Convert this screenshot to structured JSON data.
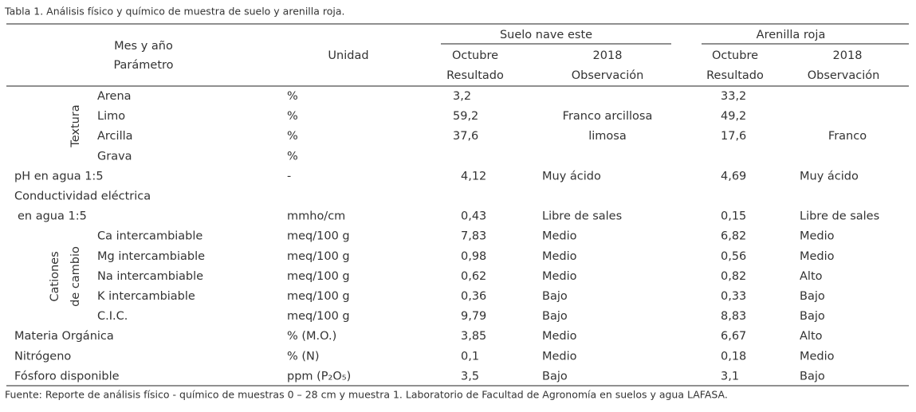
{
  "caption": "Tabla 1. Análisis físico y químico de muestra de suelo y arenilla roja.",
  "header": {
    "mes_ano": "Mes y año",
    "parametro": "Parámetro",
    "unidad": "Unidad",
    "suelo": {
      "title": "Suelo nave este",
      "month": "Octubre",
      "year": "2018",
      "resultado": "Resultado",
      "observacion": "Observación"
    },
    "arenilla": {
      "title": "Arenilla roja",
      "month": "Octubre",
      "year": "2018",
      "resultado": "Resultado",
      "observacion": "Observación"
    }
  },
  "groups": {
    "textura": "Textura",
    "cationes": [
      "Cationes",
      "de cambio"
    ]
  },
  "rows": [
    {
      "group": "textura",
      "parameter": "Arena",
      "unit": "%",
      "suelo_resultado": "3,2",
      "arenilla_resultado": "33,2"
    },
    {
      "group": "textura",
      "parameter": "Limo",
      "unit": "%",
      "suelo_resultado": "59,2",
      "suelo_observacion": "Franco arcillosa",
      "arenilla_resultado": "49,2"
    },
    {
      "group": "textura",
      "parameter": "Arcilla",
      "unit": "%",
      "suelo_resultado": "37,6",
      "suelo_observacion": "limosa",
      "arenilla_resultado": "17,6",
      "arenilla_observacion": "Franco"
    },
    {
      "group": "textura",
      "parameter": "Grava",
      "unit": "%"
    },
    {
      "parameter": "pH en agua 1:5",
      "unit": "-",
      "suelo_resultado": "4,12",
      "suelo_observacion": "Muy ácido",
      "arenilla_resultado": "4,69",
      "arenilla_observacion": "Muy ácido"
    },
    {
      "parameter": "Conductividad eléctrica"
    },
    {
      "parameter": "en agua 1:5",
      "unit": "mmho/cm",
      "suelo_resultado": "0,43",
      "suelo_observacion": "Libre de sales",
      "arenilla_resultado": "0,15",
      "arenilla_observacion": "Libre de sales"
    },
    {
      "group": "cationes",
      "parameter": "Ca intercambiable",
      "unit": "meq/100 g",
      "suelo_resultado": "7,83",
      "suelo_observacion": "Medio",
      "arenilla_resultado": "6,82",
      "arenilla_observacion": "Medio"
    },
    {
      "group": "cationes",
      "parameter": "Mg intercambiable",
      "unit": "meq/100 g",
      "suelo_resultado": "0,98",
      "suelo_observacion": "Medio",
      "arenilla_resultado": "0,56",
      "arenilla_observacion": "Medio"
    },
    {
      "group": "cationes",
      "parameter": "Na intercambiable",
      "unit": "meq/100 g",
      "suelo_resultado": "0,62",
      "suelo_observacion": "Medio",
      "arenilla_resultado": "0,82",
      "arenilla_observacion": "Alto"
    },
    {
      "group": "cationes",
      "parameter": "K intercambiable",
      "unit": "meq/100 g",
      "suelo_resultado": "0,36",
      "suelo_observacion": "Bajo",
      "arenilla_resultado": "0,33",
      "arenilla_observacion": "Bajo"
    },
    {
      "group": "cationes",
      "parameter": "C.I.C.",
      "unit": "meq/100 g",
      "suelo_resultado": "9,79",
      "suelo_observacion": "Bajo",
      "arenilla_resultado": "8,83",
      "arenilla_observacion": "Bajo"
    },
    {
      "parameter": "Materia Orgánica",
      "unit": "% (M.O.)",
      "suelo_resultado": "3,85",
      "suelo_observacion": "Medio",
      "arenilla_resultado": "6,67",
      "arenilla_observacion": "Alto"
    },
    {
      "parameter": "Nitrógeno",
      "unit": "% (N)",
      "suelo_resultado": "0,1",
      "suelo_observacion": "Medio",
      "arenilla_resultado": "0,18",
      "arenilla_observacion": "Medio"
    },
    {
      "parameter": "Fósforo disponible",
      "unit": "ppm (P₂O₅)",
      "suelo_resultado": "3,5",
      "suelo_observacion": "Bajo",
      "arenilla_resultado": "3,1",
      "arenilla_observacion": "Bajo"
    }
  ],
  "footnote": "Fuente: Reporte de análisis físico - químico de muestras 0 – 28 cm y muestra 1. Laboratorio de Facultad de Agronomía en suelos y agua LAFASA."
}
